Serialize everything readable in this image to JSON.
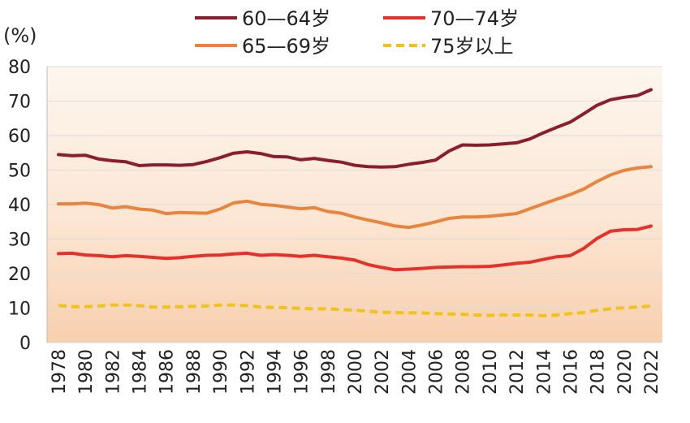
{
  "chart_data": {
    "type": "line",
    "title": "",
    "xlabel": "",
    "ylabel": "(%)",
    "ylim": [
      0,
      80
    ],
    "yticks": [
      0,
      10,
      20,
      30,
      40,
      50,
      60,
      70,
      80
    ],
    "x": [
      1978,
      1979,
      1980,
      1981,
      1982,
      1983,
      1984,
      1985,
      1986,
      1987,
      1988,
      1989,
      1990,
      1991,
      1992,
      1993,
      1994,
      1995,
      1996,
      1997,
      1998,
      1999,
      2000,
      2001,
      2002,
      2003,
      2004,
      2005,
      2006,
      2007,
      2008,
      2009,
      2010,
      2011,
      2012,
      2013,
      2014,
      2015,
      2016,
      2017,
      2018,
      2019,
      2020,
      2021,
      2022
    ],
    "xtick_labels": [
      "1978",
      "1980",
      "1982",
      "1984",
      "1986",
      "1988",
      "1990",
      "1992",
      "1994",
      "1996",
      "1998",
      "2000",
      "2002",
      "2004",
      "2006",
      "2008",
      "2010",
      "2012",
      "2014",
      "2016",
      "2018",
      "2020",
      "2022"
    ],
    "legend_position": "top",
    "series": [
      {
        "name": "60—64岁",
        "color": "#8b1e2d",
        "style": "solid",
        "values": [
          54.5,
          54.2,
          54.3,
          53.2,
          52.7,
          52.4,
          51.3,
          51.5,
          51.5,
          51.4,
          51.6,
          52.5,
          53.6,
          54.9,
          55.3,
          54.8,
          53.9,
          53.8,
          53.0,
          53.4,
          52.8,
          52.3,
          51.4,
          51.0,
          50.9,
          51.0,
          51.7,
          52.2,
          52.9,
          55.5,
          57.3,
          57.2,
          57.3,
          57.6,
          57.9,
          59.0,
          60.8,
          62.4,
          63.9,
          66.3,
          68.8,
          70.4,
          71.1,
          71.6,
          73.3
        ]
      },
      {
        "name": "65—69岁",
        "color": "#e8843e",
        "style": "solid",
        "values": [
          40.2,
          40.2,
          40.4,
          40.0,
          39.0,
          39.4,
          38.7,
          38.4,
          37.4,
          37.7,
          37.6,
          37.5,
          38.7,
          40.5,
          41.0,
          40.1,
          39.8,
          39.3,
          38.8,
          39.1,
          38.0,
          37.5,
          36.4,
          35.5,
          34.7,
          33.8,
          33.4,
          34.1,
          35.0,
          36.0,
          36.4,
          36.4,
          36.6,
          37.0,
          37.4,
          38.8,
          40.2,
          41.6,
          42.9,
          44.5,
          46.7,
          48.6,
          49.9,
          50.6,
          51.0
        ]
      },
      {
        "name": "70—74岁",
        "color": "#e8302a",
        "style": "solid",
        "values": [
          25.8,
          25.9,
          25.4,
          25.2,
          24.9,
          25.2,
          25.0,
          24.7,
          24.4,
          24.6,
          25.0,
          25.3,
          25.4,
          25.7,
          25.9,
          25.3,
          25.5,
          25.3,
          25.0,
          25.3,
          24.9,
          24.5,
          23.9,
          22.6,
          21.8,
          21.1,
          21.3,
          21.5,
          21.8,
          21.9,
          22.0,
          22.0,
          22.1,
          22.5,
          23.0,
          23.3,
          24.1,
          24.9,
          25.2,
          27.3,
          30.2,
          32.3,
          32.7,
          32.8,
          33.8
        ]
      },
      {
        "name": "75岁以上",
        "color": "#f2c21b",
        "style": "dashed",
        "values": [
          10.8,
          10.4,
          10.4,
          10.6,
          10.9,
          10.9,
          10.7,
          10.3,
          10.3,
          10.4,
          10.5,
          10.6,
          10.9,
          10.9,
          10.7,
          10.3,
          10.2,
          10.1,
          9.9,
          9.8,
          9.8,
          9.6,
          9.4,
          9.1,
          8.8,
          8.7,
          8.6,
          8.6,
          8.4,
          8.3,
          8.2,
          8.0,
          7.9,
          8.0,
          8.0,
          8.0,
          7.8,
          8.0,
          8.4,
          8.7,
          9.4,
          9.8,
          10.1,
          10.3,
          10.6
        ]
      }
    ]
  }
}
